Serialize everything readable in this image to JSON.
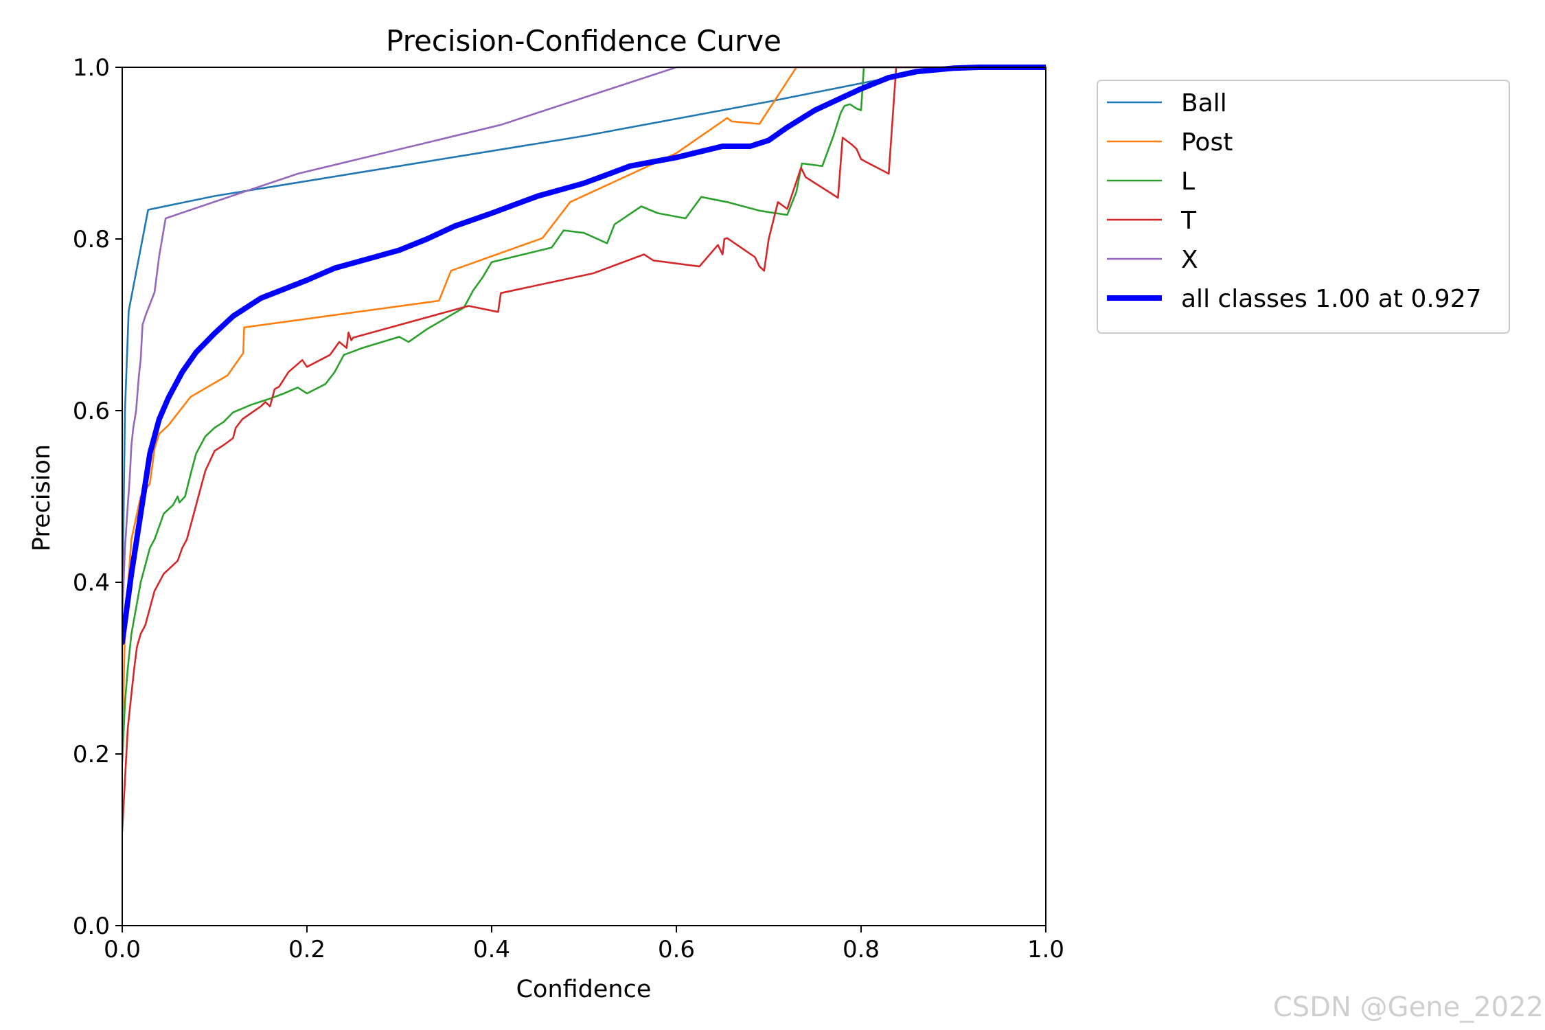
{
  "watermark": "CSDN @Gene_2022",
  "chart_data": {
    "type": "line",
    "title": "Precision-Confidence Curve",
    "xlabel": "Confidence",
    "ylabel": "Precision",
    "xlim": [
      0,
      1
    ],
    "ylim": [
      0,
      1
    ],
    "xticks": [
      "0.0",
      "0.2",
      "0.4",
      "0.6",
      "0.8",
      "1.0"
    ],
    "yticks": [
      "0.0",
      "0.2",
      "0.4",
      "0.6",
      "0.8",
      "1.0"
    ],
    "grid": false,
    "legend_position": "outside-top-right",
    "series": [
      {
        "name": "Ball",
        "color": "#1f77b4",
        "width": "thin",
        "x": [
          0.0,
          0.003,
          0.007,
          0.028,
          0.1,
          0.3,
          0.5,
          0.7,
          0.85,
          0.88,
          1.0
        ],
        "y": [
          0.36,
          0.6,
          0.716,
          0.834,
          0.85,
          0.885,
          0.92,
          0.96,
          0.992,
          1.0,
          1.0
        ]
      },
      {
        "name": "Post",
        "color": "#ff7f0e",
        "width": "thin",
        "x": [
          0.0,
          0.003,
          0.01,
          0.02,
          0.03,
          0.035,
          0.04,
          0.05,
          0.074,
          0.114,
          0.131,
          0.132,
          0.343,
          0.356,
          0.455,
          0.485,
          0.6,
          0.655,
          0.66,
          0.69,
          0.73,
          0.8,
          1.0
        ],
        "y": [
          0.2,
          0.35,
          0.45,
          0.5,
          0.515,
          0.556,
          0.573,
          0.583,
          0.616,
          0.641,
          0.667,
          0.697,
          0.728,
          0.763,
          0.801,
          0.843,
          0.9,
          0.941,
          0.937,
          0.934,
          1.0,
          1.0,
          1.0
        ]
      },
      {
        "name": "L",
        "color": "#2ca02c",
        "width": "thin",
        "x": [
          0.0,
          0.003,
          0.006,
          0.01,
          0.015,
          0.02,
          0.025,
          0.03,
          0.035,
          0.04,
          0.045,
          0.055,
          0.06,
          0.062,
          0.068,
          0.075,
          0.08,
          0.09,
          0.1,
          0.11,
          0.12,
          0.14,
          0.16,
          0.175,
          0.19,
          0.2,
          0.22,
          0.23,
          0.235,
          0.24,
          0.26,
          0.3,
          0.31,
          0.33,
          0.37,
          0.38,
          0.39,
          0.4,
          0.465,
          0.478,
          0.5,
          0.525,
          0.533,
          0.562,
          0.58,
          0.61,
          0.627,
          0.655,
          0.69,
          0.72,
          0.73,
          0.736,
          0.758,
          0.77,
          0.778,
          0.782,
          0.788,
          0.795,
          0.8,
          0.803,
          0.81,
          0.9,
          1.0
        ],
        "y": [
          0.19,
          0.26,
          0.3,
          0.34,
          0.37,
          0.4,
          0.42,
          0.44,
          0.45,
          0.465,
          0.48,
          0.49,
          0.5,
          0.493,
          0.5,
          0.53,
          0.55,
          0.57,
          0.58,
          0.587,
          0.598,
          0.607,
          0.614,
          0.62,
          0.627,
          0.62,
          0.631,
          0.645,
          0.655,
          0.665,
          0.673,
          0.686,
          0.68,
          0.695,
          0.72,
          0.74,
          0.755,
          0.773,
          0.79,
          0.81,
          0.807,
          0.795,
          0.817,
          0.838,
          0.83,
          0.824,
          0.849,
          0.843,
          0.833,
          0.828,
          0.855,
          0.888,
          0.885,
          0.92,
          0.947,
          0.955,
          0.957,
          0.952,
          0.95,
          1.0,
          1.0,
          1.0,
          1.0
        ]
      },
      {
        "name": "T",
        "color": "#d62728",
        "width": "thin",
        "x": [
          0.0,
          0.003,
          0.006,
          0.01,
          0.013,
          0.016,
          0.02,
          0.025,
          0.03,
          0.035,
          0.04,
          0.045,
          0.05,
          0.055,
          0.06,
          0.065,
          0.07,
          0.075,
          0.08,
          0.085,
          0.09,
          0.1,
          0.11,
          0.12,
          0.123,
          0.13,
          0.15,
          0.155,
          0.16,
          0.165,
          0.17,
          0.18,
          0.195,
          0.2,
          0.225,
          0.235,
          0.243,
          0.245,
          0.248,
          0.25,
          0.375,
          0.407,
          0.41,
          0.51,
          0.565,
          0.575,
          0.625,
          0.645,
          0.65,
          0.652,
          0.655,
          0.685,
          0.69,
          0.695,
          0.7,
          0.71,
          0.72,
          0.735,
          0.74,
          0.775,
          0.78,
          0.79,
          0.795,
          0.8,
          0.805,
          0.83,
          0.838,
          0.85,
          1.0
        ],
        "y": [
          0.11,
          0.17,
          0.23,
          0.27,
          0.3,
          0.325,
          0.34,
          0.35,
          0.37,
          0.39,
          0.4,
          0.41,
          0.415,
          0.42,
          0.425,
          0.44,
          0.45,
          0.47,
          0.49,
          0.51,
          0.53,
          0.553,
          0.56,
          0.568,
          0.58,
          0.59,
          0.605,
          0.61,
          0.605,
          0.625,
          0.628,
          0.645,
          0.659,
          0.651,
          0.665,
          0.68,
          0.673,
          0.691,
          0.682,
          0.685,
          0.722,
          0.715,
          0.737,
          0.76,
          0.782,
          0.775,
          0.768,
          0.793,
          0.782,
          0.8,
          0.801,
          0.779,
          0.768,
          0.763,
          0.8,
          0.843,
          0.835,
          0.883,
          0.872,
          0.848,
          0.918,
          0.91,
          0.905,
          0.893,
          0.89,
          0.876,
          1.0,
          1.0,
          1.0
        ]
      },
      {
        "name": "X",
        "color": "#9467bd",
        "width": "thin",
        "x": [
          0.0,
          0.003,
          0.006,
          0.008,
          0.01,
          0.012,
          0.015,
          0.018,
          0.02,
          0.022,
          0.025,
          0.035,
          0.04,
          0.047,
          0.19,
          0.41,
          0.6,
          1.0
        ],
        "y": [
          0.36,
          0.44,
          0.49,
          0.52,
          0.56,
          0.58,
          0.6,
          0.64,
          0.66,
          0.7,
          0.71,
          0.738,
          0.78,
          0.824,
          0.876,
          0.933,
          1.0,
          1.0
        ]
      },
      {
        "name": "all classes 1.00 at 0.927",
        "color": "#0000ff",
        "width": "thick",
        "x": [
          0.0,
          0.005,
          0.01,
          0.02,
          0.03,
          0.04,
          0.05,
          0.065,
          0.08,
          0.1,
          0.12,
          0.15,
          0.2,
          0.23,
          0.26,
          0.3,
          0.33,
          0.36,
          0.4,
          0.45,
          0.5,
          0.55,
          0.6,
          0.65,
          0.68,
          0.7,
          0.72,
          0.75,
          0.78,
          0.8,
          0.83,
          0.86,
          0.9,
          0.927,
          1.0
        ],
        "y": [
          0.33,
          0.37,
          0.41,
          0.48,
          0.55,
          0.59,
          0.615,
          0.645,
          0.668,
          0.69,
          0.71,
          0.731,
          0.752,
          0.766,
          0.775,
          0.787,
          0.8,
          0.815,
          0.83,
          0.85,
          0.865,
          0.885,
          0.895,
          0.908,
          0.908,
          0.915,
          0.93,
          0.95,
          0.965,
          0.975,
          0.988,
          0.995,
          0.999,
          1.0,
          1.0
        ]
      }
    ]
  }
}
